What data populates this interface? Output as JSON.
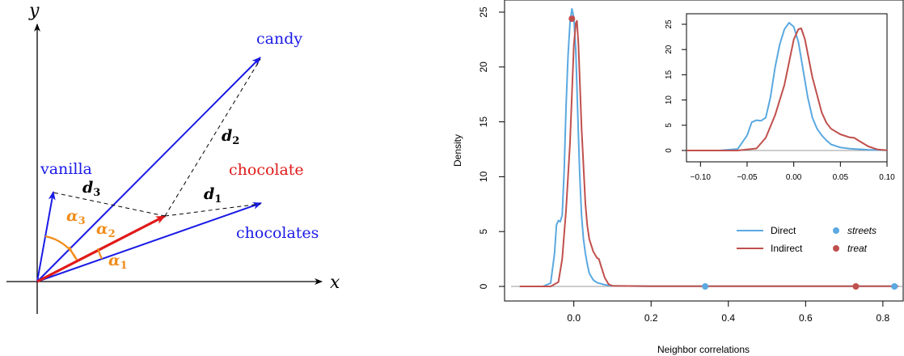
{
  "diagram": {
    "axis_x_label": "x",
    "axis_y_label": "y",
    "words": {
      "candy": "candy",
      "vanilla": "vanilla",
      "chocolate": "chocolate",
      "chocolates": "chocolates"
    },
    "distance_labels": {
      "d1": "1",
      "d2": "2",
      "d3": "3",
      "letter": "d"
    },
    "angle_labels": {
      "a1": "1",
      "a2": "2",
      "a3": "3",
      "letter": "α"
    },
    "colors": {
      "vector": "#1a1ae6",
      "target": "#e01a1a",
      "angle": "#f08c1a",
      "dashed": "#000000"
    }
  },
  "chart_data": {
    "type": "line",
    "xlabel": "Neighbor correlations",
    "ylabel": "Density",
    "xlim": [
      -0.15,
      0.84
    ],
    "ylim": [
      0,
      25.5
    ],
    "x_ticks": [
      0.0,
      0.2,
      0.4,
      0.6,
      0.8
    ],
    "x_tick_labels": [
      "0.0",
      "0.2",
      "0.4",
      "0.6",
      "0.8"
    ],
    "y_ticks": [
      0,
      5,
      10,
      15,
      20,
      25
    ],
    "y_tick_labels": [
      "0",
      "5",
      "10",
      "15",
      "20",
      "25"
    ],
    "series": [
      {
        "name": "Direct",
        "color": "#5aa9e0",
        "x": [
          -0.14,
          -0.08,
          -0.06,
          -0.05,
          -0.045,
          -0.04,
          -0.035,
          -0.03,
          -0.025,
          -0.02,
          -0.015,
          -0.01,
          -0.005,
          0.0,
          0.005,
          0.01,
          0.015,
          0.02,
          0.025,
          0.03,
          0.035,
          0.04,
          0.05,
          0.06,
          0.08,
          0.1,
          0.2,
          0.4,
          0.6,
          0.84
        ],
        "y": [
          0,
          0,
          0.3,
          3.0,
          5.6,
          6.0,
          5.9,
          6.5,
          10.5,
          16.5,
          21.0,
          24.0,
          25.3,
          24.5,
          21.5,
          16.0,
          10.5,
          6.5,
          4.3,
          3.0,
          2.0,
          1.2,
          0.6,
          0.35,
          0.15,
          0.05,
          0.02,
          0.02,
          0.02,
          0.02
        ]
      },
      {
        "name": "Indirect",
        "color": "#c0504d",
        "x": [
          -0.14,
          -0.06,
          -0.04,
          -0.03,
          -0.02,
          -0.01,
          -0.005,
          0.0,
          0.005,
          0.008,
          0.012,
          0.02,
          0.03,
          0.035,
          0.04,
          0.05,
          0.06,
          0.065,
          0.07,
          0.08,
          0.09,
          0.1,
          0.2,
          0.4,
          0.6,
          0.84
        ],
        "y": [
          0,
          0,
          0.4,
          2.5,
          7.0,
          13.0,
          17.5,
          22.0,
          24.0,
          24.2,
          22.0,
          14.5,
          7.5,
          5.5,
          4.3,
          3.2,
          2.6,
          2.5,
          1.9,
          0.8,
          0.2,
          0.05,
          0.02,
          0.02,
          0.02,
          0.02
        ]
      }
    ],
    "markers": [
      {
        "name": "streets",
        "color": "#5aa9e0",
        "points": [
          [
            0.34,
            0
          ],
          [
            0.83,
            0
          ]
        ]
      },
      {
        "name": "treat",
        "color": "#c0504d",
        "points": [
          [
            -0.005,
            24.4
          ],
          [
            0.73,
            0
          ]
        ]
      }
    ],
    "legend": {
      "placement": "center-right",
      "entries": [
        {
          "label": "Direct",
          "kind": "line",
          "color": "#5aa9e0"
        },
        {
          "label": "Indirect",
          "kind": "line",
          "color": "#c0504d"
        },
        {
          "label": "streets",
          "kind": "point",
          "color": "#5aa9e0",
          "italic": true
        },
        {
          "label": "treat",
          "kind": "point",
          "color": "#c0504d",
          "italic": true
        }
      ]
    },
    "inset": {
      "placement": "top-right",
      "xlim": [
        -0.115,
        0.1
      ],
      "ylim": [
        0,
        25.5
      ],
      "x_ticks": [
        -0.1,
        -0.05,
        0.0,
        0.05,
        0.1
      ],
      "x_tick_labels": [
        "−0.10",
        "−0.05",
        "0.00",
        "0.05",
        "0.10"
      ],
      "y_ticks": [
        0,
        5,
        10,
        15,
        20,
        25
      ],
      "y_tick_labels": [
        "0",
        "5",
        "10",
        "15",
        "20",
        "25"
      ]
    }
  }
}
